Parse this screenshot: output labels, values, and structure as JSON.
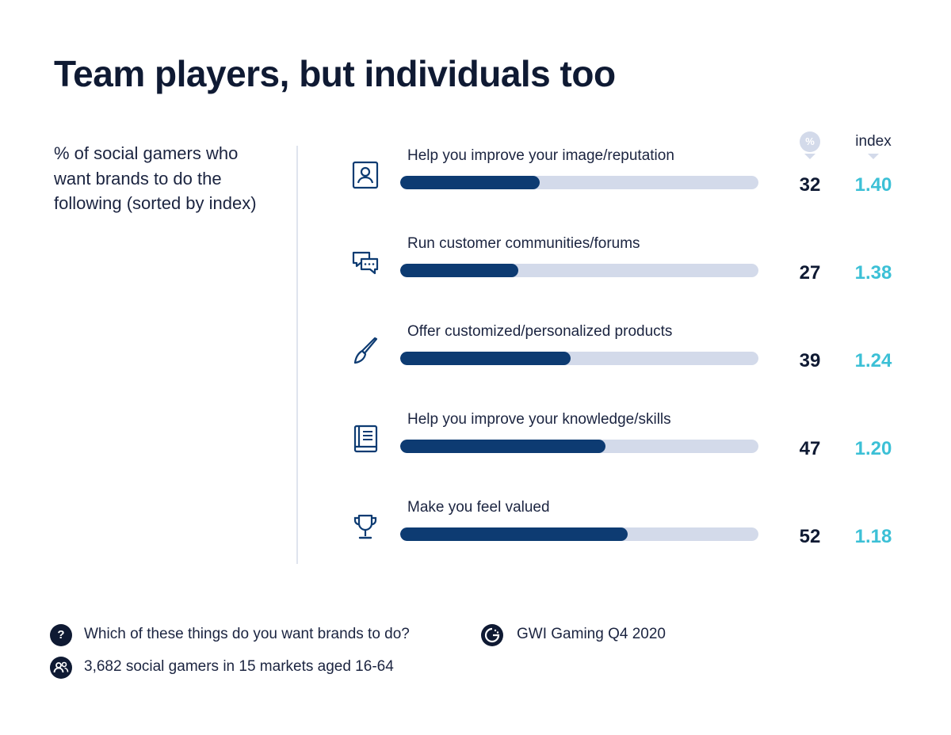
{
  "title": "Team players, but individuals too",
  "subtitle": "% of social gamers who want brands to do the following (sorted by index)",
  "columns": {
    "pct_label": "%",
    "index_label": "index"
  },
  "icons": [
    "person-badge-icon",
    "chat-bubbles-icon",
    "paintbrush-icon",
    "book-icon",
    "trophy-icon"
  ],
  "colors": {
    "bar_fill": "#0d3b72",
    "bar_track": "#d3daea",
    "index_text": "#3cc0d6",
    "text_dark": "#0f1a33"
  },
  "chart_data": {
    "type": "bar",
    "orientation": "horizontal",
    "xlim": [
      0,
      82
    ],
    "categories": [
      "Help you improve your image/reputation",
      "Run customer communities/forums",
      "Offer customized/personalized products",
      "Help you improve your knowledge/skills",
      "Make you feel valued"
    ],
    "values": [
      32,
      27,
      39,
      47,
      52
    ],
    "value_labels": [
      "32",
      "27",
      "39",
      "47",
      "52"
    ],
    "index_labels": [
      "1.40",
      "1.38",
      "1.24",
      "1.20",
      "1.18"
    ]
  },
  "footer": {
    "question": "Which of these things do you want brands to do?",
    "question_icon": "question-icon",
    "sample": "3,682 social gamers in 15 markets aged 16-64",
    "sample_icon": "people-icon",
    "source": "GWI Gaming Q4 2020",
    "source_icon": "gwi-logo-icon"
  }
}
